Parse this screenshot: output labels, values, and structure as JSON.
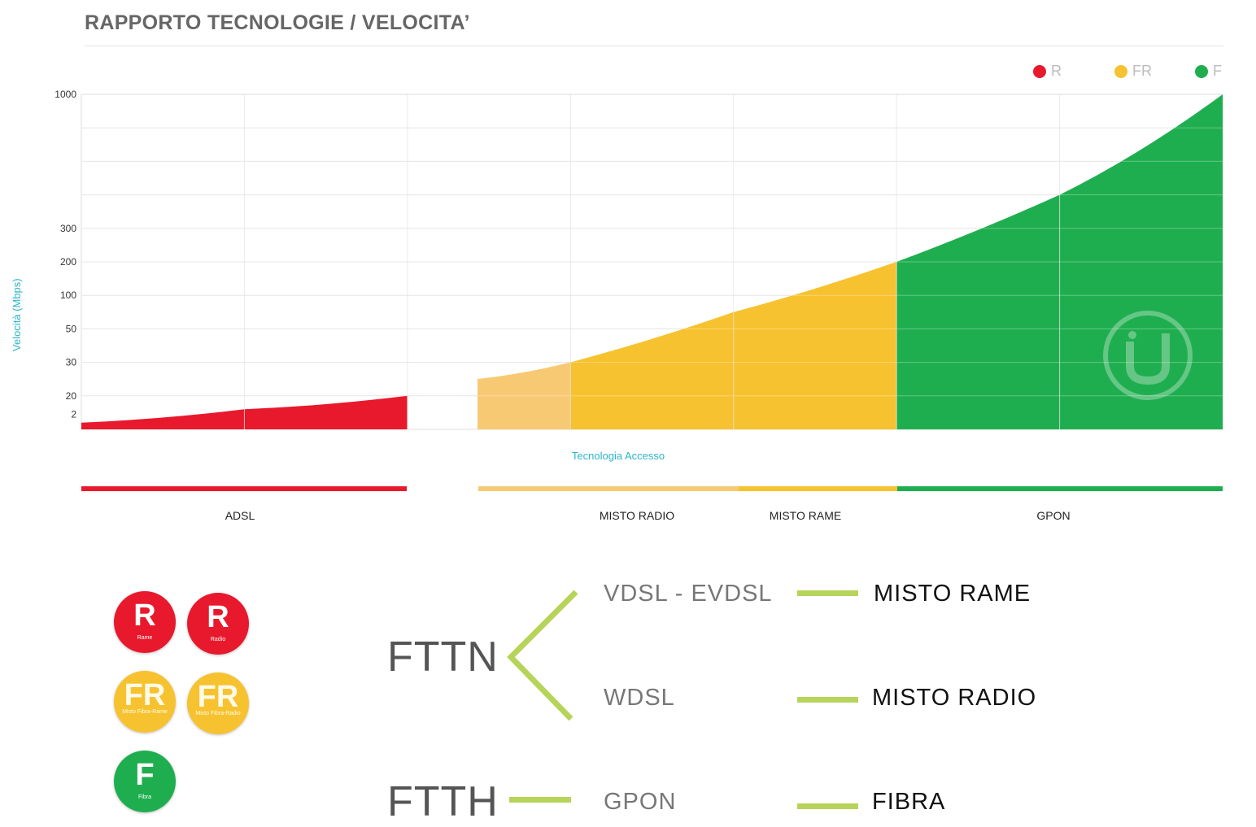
{
  "title": "RAPPORTO TECNOLOGIE / VELOCITA’",
  "legend": [
    {
      "label": "R",
      "color": "#e8192c"
    },
    {
      "label": "FR",
      "color": "#f7c22f"
    },
    {
      "label": "F",
      "color": "#1fae4f"
    }
  ],
  "chart_data": {
    "type": "area",
    "ylabel": "Velocità (Mbps)",
    "xlabel": "Tecnologia Accesso",
    "yticks": [
      "1000",
      "300",
      "200",
      "100",
      "50",
      "30",
      "20",
      "2"
    ],
    "grid": true,
    "series": [
      {
        "name": "R",
        "color": "#e8192c",
        "points": [
          [
            0,
            0.2
          ],
          [
            1,
            0.6
          ],
          [
            2,
            1.0
          ]
        ]
      },
      {
        "name": "FR",
        "color": "#f7c22f",
        "points": [
          [
            2.43,
            1.5
          ],
          [
            3,
            2.0
          ],
          [
            4,
            3.5
          ],
          [
            5,
            5.0
          ]
        ]
      },
      {
        "name": "F",
        "color": "#1fae4f",
        "points": [
          [
            5,
            5.0
          ],
          [
            6,
            7.0
          ],
          [
            7,
            10.0
          ]
        ]
      }
    ],
    "categories": [
      {
        "label": "ADSL",
        "color": "#e8192c"
      },
      {
        "label": "MISTO RADIO",
        "color": "#f8c973"
      },
      {
        "label": "MISTO RAME",
        "color": "#f7c22f"
      },
      {
        "label": "GPON",
        "color": "#1fae4f"
      }
    ]
  },
  "badges": [
    {
      "letter": "R",
      "caption": "Rame"
    },
    {
      "letter": "R",
      "caption": "Radio"
    },
    {
      "letter": "FR",
      "caption": "Misto Fibra-Rame"
    },
    {
      "letter": "FR",
      "caption": "Misto Fibra-Radio"
    },
    {
      "letter": "F",
      "caption": "Fibra"
    }
  ],
  "diagram": {
    "fttn": "FTTN",
    "ftth": "FTTH",
    "vdsl": "VDSL - EVDSL",
    "wdsl": "WDSL",
    "gpon": "GPON",
    "misto_rame": "MISTO RAME",
    "misto_radio": "MISTO RADIO",
    "fibra": "FIBRA"
  }
}
